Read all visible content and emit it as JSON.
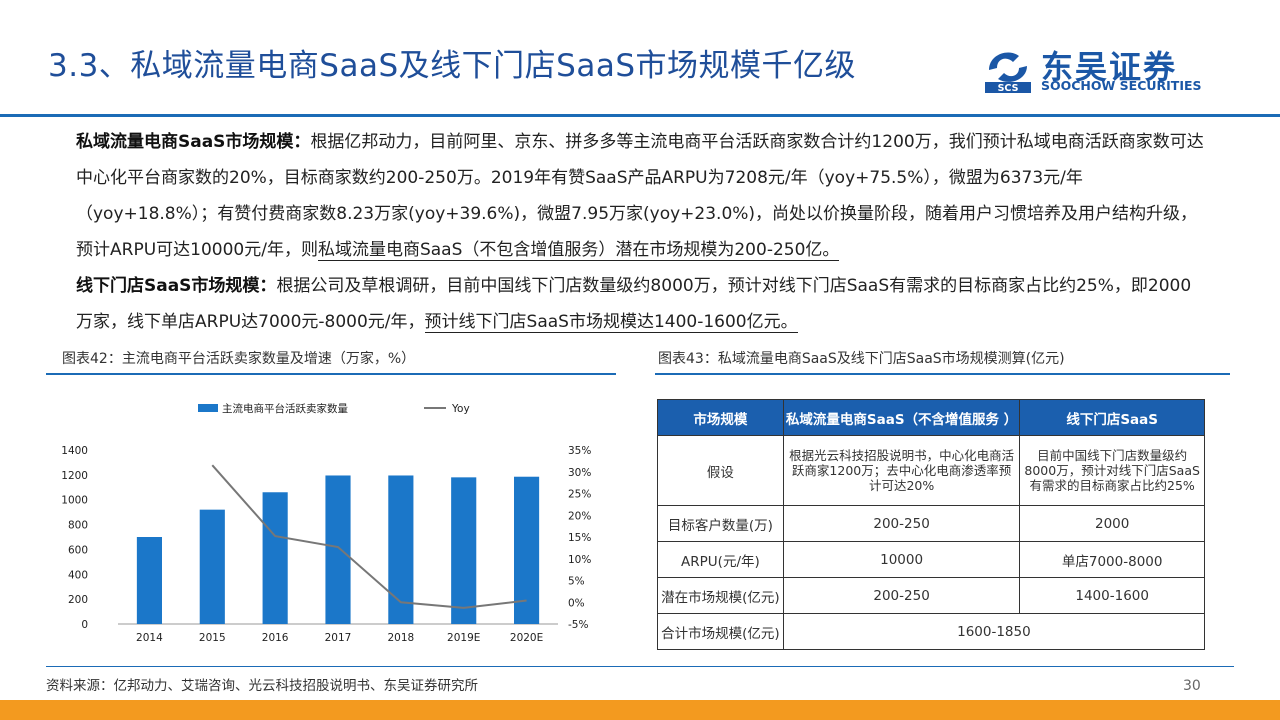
{
  "title": "3.3、私域流量电商SaaS及线下门店SaaS市场规模千亿级",
  "logo": {
    "cn": "东吴证券",
    "en": "SOOCHOW SECURITIES",
    "mark_text": "SCS"
  },
  "bullets": [
    {
      "marker": "",
      "head": "私域流量电商SaaS市场规模：",
      "body": "根据亿邦动力，目前阿里、京东、拼多多等主流电商平台活跃商家数合计约1200万，我们预计私域电商活跃商家数可达中心化平台商家数的20%，目标商家数约200-250万。2019年有赞SaaS产品ARPU为7208元/年（yoy+75.5%），微盟为6373元/年（yoy+18.8%）；有赞付费商家数8.23万家(yoy+39.6%)，微盟7.95万家(yoy+23.0%)，尚处以价换量阶段，随着用户习惯培养及用户结构升级，预计ARPU可达10000元/年，则",
      "underlined": "私域流量电商SaaS（不包含增值服务）潜在市场规模为200-250亿。"
    },
    {
      "marker": "",
      "head": "线下门店SaaS市场规模：",
      "body": "根据公司及草根调研，目前中国线下门店数量级约8000万，预计对线下门店SaaS有需求的目标商家占比约25%，即2000万家，线下单店ARPU达7000元-8000元/年，",
      "underlined": "预计线下门店SaaS市场规模达1400-1600亿元。"
    }
  ],
  "figure42": {
    "caption": "图表42：主流电商平台活跃卖家数量及增速（万家，%）"
  },
  "figure43": {
    "caption": "图表43：私域流量电商SaaS及线下门店SaaS市场规模测算(亿元)"
  },
  "chart_data": {
    "type": "bar",
    "title": "",
    "categories": [
      "2014",
      "2015",
      "2016",
      "2017",
      "2018",
      "2019E",
      "2020E"
    ],
    "series": [
      {
        "name": "主流电商平台活跃卖家数量",
        "type": "bar",
        "axis": "left",
        "color": "#1b77c9",
        "values": [
          700,
          920,
          1060,
          1195,
          1195,
          1180,
          1185
        ]
      },
      {
        "name": "Yoy",
        "type": "line",
        "axis": "right",
        "color": "#777777",
        "values": [
          null,
          31.5,
          15.2,
          12.7,
          0.0,
          -1.3,
          0.4
        ]
      }
    ],
    "left_axis": {
      "ylim": [
        0,
        1400
      ],
      "ticks": [
        "0",
        "200",
        "400",
        "600",
        "800",
        "1000",
        "1200",
        "1400"
      ]
    },
    "right_axis": {
      "ylim": [
        -5,
        35
      ],
      "ticks": [
        "-5%",
        "0%",
        "5%",
        "10%",
        "15%",
        "20%",
        "25%",
        "30%",
        "35%"
      ]
    },
    "legend_position": "top",
    "grid": false
  },
  "table": {
    "headers": [
      "市场规模",
      "私域流量电商SaaS（不含增值服务 ）",
      "线下门店SaaS"
    ],
    "rows": [
      {
        "label": "假设",
        "cells": [
          "根据光云科技招股说明书，中心化电商活跃商家1200万；去中心化电商渗透率预计可达20%",
          "目前中国线下门店数量级约8000万，预计对线下门店SaaS有需求的目标商家占比约25%"
        ]
      },
      {
        "label": "目标客户数量(万)",
        "cells": [
          "200-250",
          "2000"
        ]
      },
      {
        "label": "ARPU(元/年)",
        "cells": [
          "10000",
          "单店7000-8000"
        ]
      },
      {
        "label": "潜在市场规模(亿元)",
        "cells": [
          "200-250",
          "1400-1600"
        ]
      },
      {
        "label": "合计市场规模(亿元)",
        "merged": "1600-1850"
      }
    ]
  },
  "source": "资料来源：亿邦动力、艾瑞咨询、光云科技招股说明书、东吴证券研究所",
  "page_number": "30",
  "colors": {
    "brand_blue": "#1b5fae",
    "title_blue": "#1f4e99",
    "accent_orange": "#f39a1f",
    "bar_blue": "#1b77c9",
    "line_gray": "#777777"
  }
}
